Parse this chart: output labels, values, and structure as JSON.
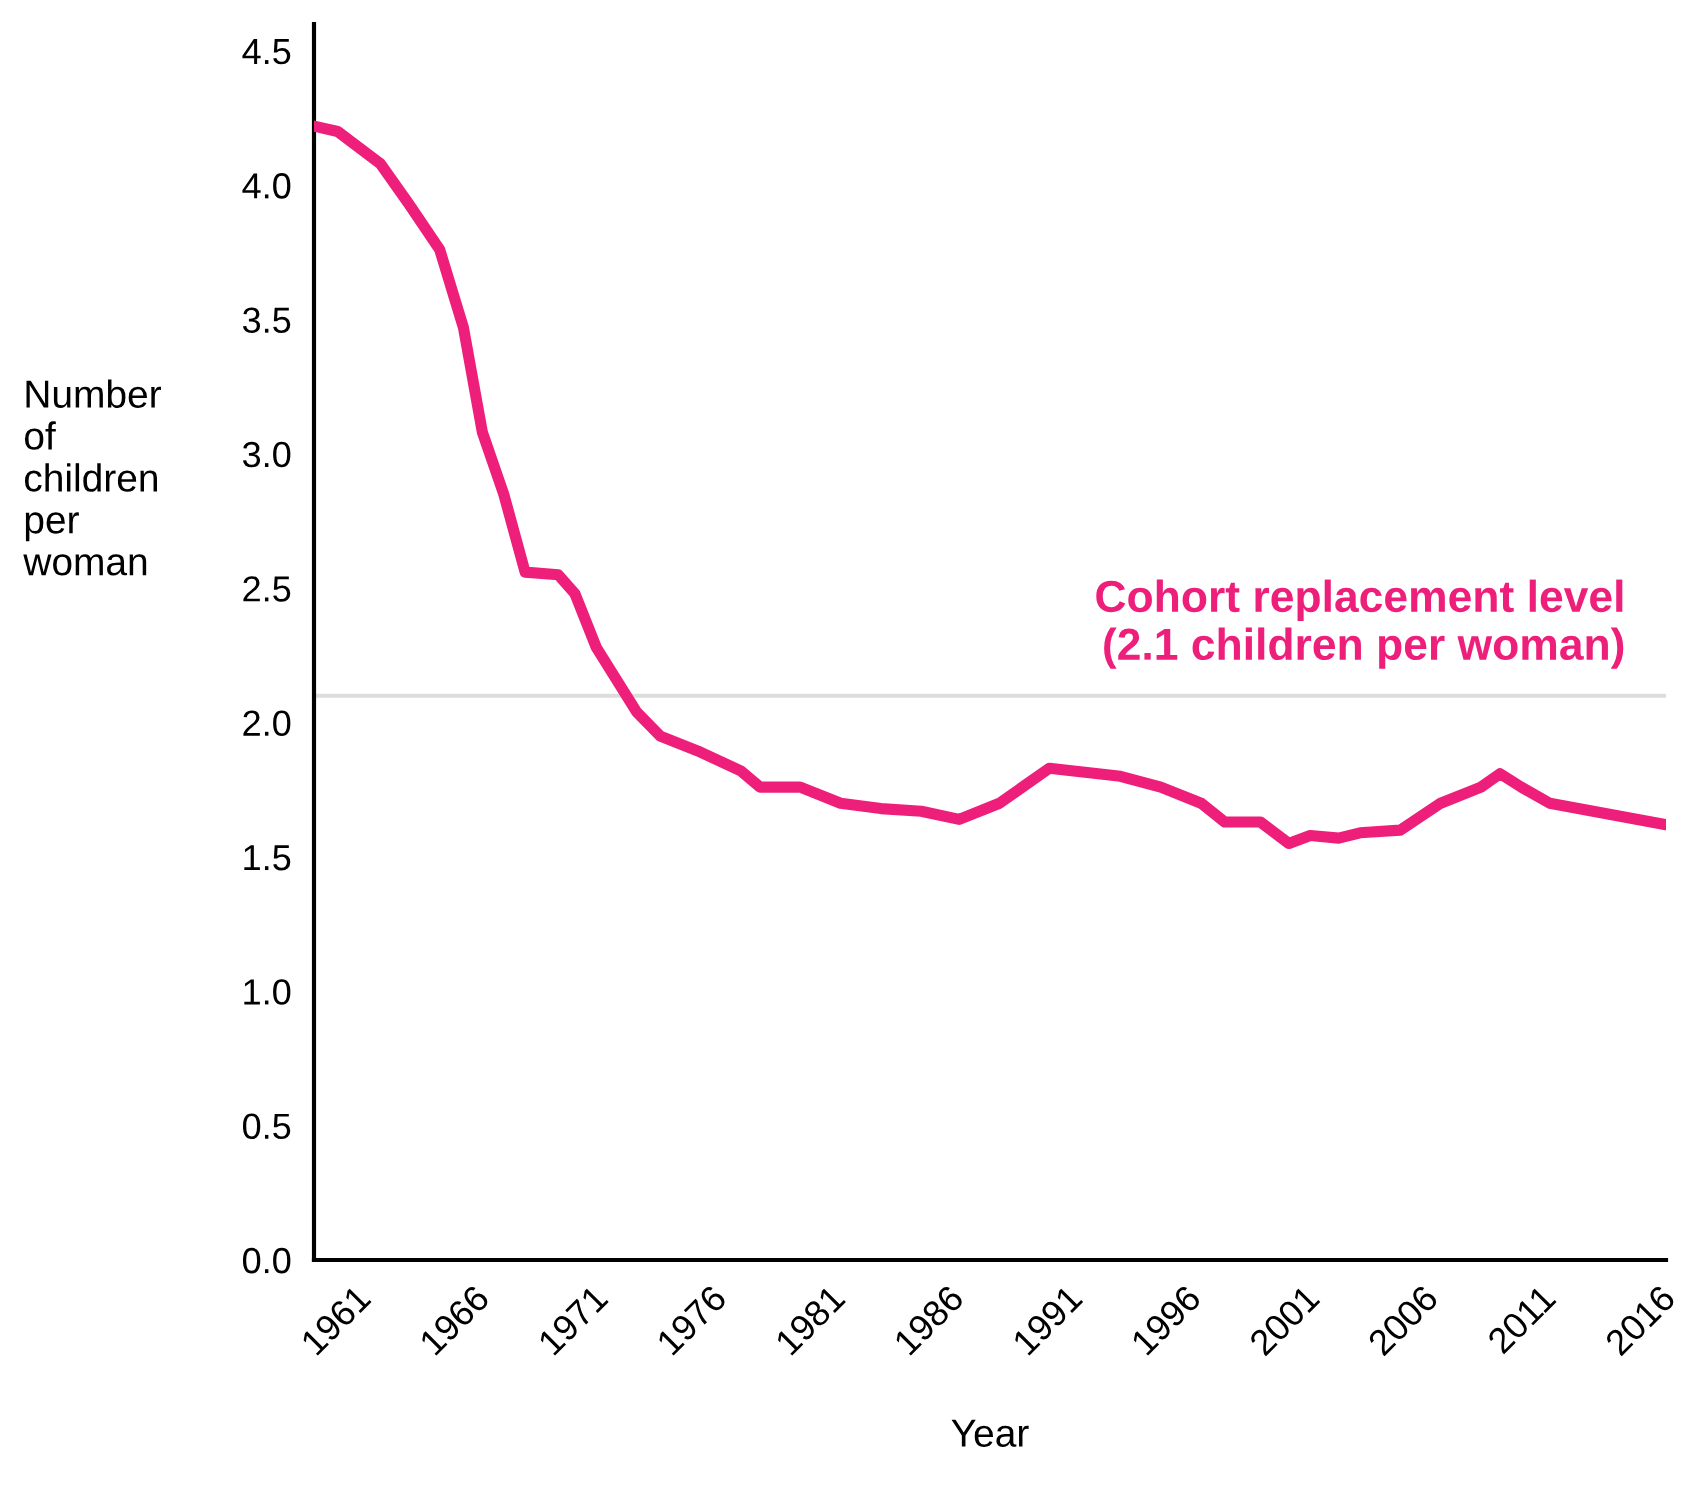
{
  "chart_data": {
    "type": "line",
    "xlabel": "Year",
    "ylabel": "Number\nof\nchildren\nper\nwoman",
    "series": [
      {
        "color": "#ee1f7a",
        "x": [
          1960,
          1961,
          1962.8,
          1964,
          1965.3,
          1966.3,
          1967.1,
          1968,
          1968.9,
          1970.3,
          1971,
          1971.9,
          1973.6,
          1974.6,
          1976.3,
          1978,
          1978.8,
          1980.5,
          1982.2,
          1983.9,
          1985.6,
          1987.2,
          1988.9,
          1991,
          1994,
          1995.7,
          1997.4,
          1998.4,
          1999.9,
          2001.1,
          2002,
          2003.2,
          2004.1,
          2005.8,
          2007.5,
          2009.2,
          2010,
          2010.9,
          2012.1,
          2017
        ],
        "values": [
          4.22,
          4.2,
          4.08,
          3.93,
          3.76,
          3.47,
          3.08,
          2.85,
          2.56,
          2.55,
          2.48,
          2.28,
          2.04,
          1.95,
          1.89,
          1.82,
          1.76,
          1.76,
          1.7,
          1.68,
          1.67,
          1.64,
          1.7,
          1.83,
          1.8,
          1.76,
          1.7,
          1.63,
          1.63,
          1.55,
          1.58,
          1.57,
          1.59,
          1.6,
          1.7,
          1.76,
          1.81,
          1.76,
          1.7,
          1.62
        ]
      }
    ],
    "xlim": [
      1960,
      2017
    ],
    "xticks": [
      1961,
      1966,
      1971,
      1976,
      1981,
      1986,
      1991,
      1996,
      2001,
      2006,
      2011,
      2016
    ],
    "ylim": [
      0,
      4.6
    ],
    "yticks": [
      {
        "value": 0,
        "label": "0.0"
      },
      {
        "value": 0.5,
        "label": "0.5"
      },
      {
        "value": 1,
        "label": "1.0"
      },
      {
        "value": 1.5,
        "label": "1.5"
      },
      {
        "value": 2,
        "label": "2.0"
      },
      {
        "value": 2.5,
        "label": "2.5"
      },
      {
        "value": 3,
        "label": "3.0"
      },
      {
        "value": 3.5,
        "label": "3.5"
      },
      {
        "value": 4,
        "label": "4.0"
      },
      {
        "value": 4.5,
        "label": "4.5"
      }
    ],
    "ref_lines": [
      {
        "axis": "y",
        "value": 2.1,
        "label": "Cohort replacement level\n(2.1 children per woman)",
        "color": "#dddddd"
      }
    ],
    "grid": false,
    "legend": false,
    "marker": "none",
    "line_style": "solid"
  }
}
